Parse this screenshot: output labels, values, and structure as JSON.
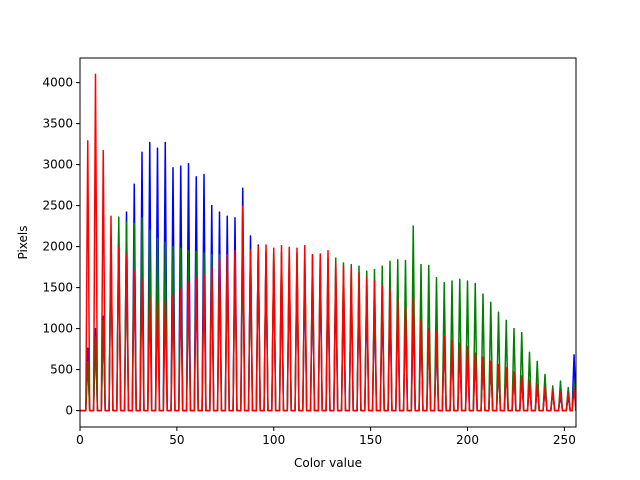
{
  "chart_data": {
    "type": "line",
    "title": "",
    "xlabel": "Color value",
    "ylabel": "Pixels",
    "xlim": [
      0,
      256
    ],
    "ylim": [
      -200,
      4300
    ],
    "xticks": [
      0,
      50,
      100,
      150,
      200,
      250
    ],
    "yticks": [
      0,
      500,
      1000,
      1500,
      2000,
      2500,
      3000,
      3500,
      4000
    ],
    "grid": false,
    "legend": "none",
    "period": 4,
    "series": [
      {
        "color": "#0000ff",
        "peaks": [
          {
            "x": 4,
            "y": 760
          },
          {
            "x": 8,
            "y": 1000
          },
          {
            "x": 12,
            "y": 1150
          },
          {
            "x": 16,
            "y": 2100
          },
          {
            "x": 20,
            "y": 2200
          },
          {
            "x": 24,
            "y": 2420
          },
          {
            "x": 28,
            "y": 2760
          },
          {
            "x": 32,
            "y": 3150
          },
          {
            "x": 36,
            "y": 3270
          },
          {
            "x": 40,
            "y": 3200
          },
          {
            "x": 44,
            "y": 3270
          },
          {
            "x": 48,
            "y": 2960
          },
          {
            "x": 52,
            "y": 2980
          },
          {
            "x": 56,
            "y": 3010
          },
          {
            "x": 60,
            "y": 2850
          },
          {
            "x": 64,
            "y": 2880
          },
          {
            "x": 68,
            "y": 2500
          },
          {
            "x": 72,
            "y": 2420
          },
          {
            "x": 76,
            "y": 2370
          },
          {
            "x": 80,
            "y": 2350
          },
          {
            "x": 84,
            "y": 2710
          },
          {
            "x": 88,
            "y": 2130
          },
          {
            "x": 92,
            "y": 2020
          },
          {
            "x": 96,
            "y": 1900
          },
          {
            "x": 100,
            "y": 1850
          },
          {
            "x": 104,
            "y": 1850
          },
          {
            "x": 108,
            "y": 1800
          },
          {
            "x": 112,
            "y": 1760
          },
          {
            "x": 116,
            "y": 1700
          },
          {
            "x": 120,
            "y": 1700
          },
          {
            "x": 124,
            "y": 1680
          },
          {
            "x": 128,
            "y": 1650
          },
          {
            "x": 132,
            "y": 1600
          },
          {
            "x": 136,
            "y": 1560
          },
          {
            "x": 140,
            "y": 1540
          },
          {
            "x": 144,
            "y": 1500
          },
          {
            "x": 148,
            "y": 1460
          },
          {
            "x": 152,
            "y": 1400
          },
          {
            "x": 156,
            "y": 1350
          },
          {
            "x": 160,
            "y": 1320
          },
          {
            "x": 164,
            "y": 1300
          },
          {
            "x": 168,
            "y": 1270
          },
          {
            "x": 172,
            "y": 1200
          },
          {
            "x": 176,
            "y": 1120
          },
          {
            "x": 180,
            "y": 1000
          },
          {
            "x": 184,
            "y": 960
          },
          {
            "x": 188,
            "y": 900
          },
          {
            "x": 192,
            "y": 860
          },
          {
            "x": 196,
            "y": 820
          },
          {
            "x": 200,
            "y": 780
          },
          {
            "x": 204,
            "y": 700
          },
          {
            "x": 208,
            "y": 650
          },
          {
            "x": 212,
            "y": 600
          },
          {
            "x": 216,
            "y": 560
          },
          {
            "x": 220,
            "y": 520
          },
          {
            "x": 224,
            "y": 470
          },
          {
            "x": 228,
            "y": 420
          },
          {
            "x": 232,
            "y": 370
          },
          {
            "x": 236,
            "y": 320
          },
          {
            "x": 240,
            "y": 270
          },
          {
            "x": 244,
            "y": 230
          },
          {
            "x": 248,
            "y": 200
          },
          {
            "x": 252,
            "y": 180
          },
          {
            "x": 255,
            "y": 680
          }
        ]
      },
      {
        "color": "#008000",
        "peaks": [
          {
            "x": 4,
            "y": 600
          },
          {
            "x": 8,
            "y": 900
          },
          {
            "x": 12,
            "y": 1100
          },
          {
            "x": 16,
            "y": 2000
          },
          {
            "x": 20,
            "y": 2360
          },
          {
            "x": 24,
            "y": 2300
          },
          {
            "x": 28,
            "y": 2280
          },
          {
            "x": 32,
            "y": 2350
          },
          {
            "x": 36,
            "y": 2200
          },
          {
            "x": 40,
            "y": 2100
          },
          {
            "x": 44,
            "y": 2050
          },
          {
            "x": 48,
            "y": 2000
          },
          {
            "x": 52,
            "y": 1980
          },
          {
            "x": 56,
            "y": 1950
          },
          {
            "x": 60,
            "y": 1940
          },
          {
            "x": 64,
            "y": 1920
          },
          {
            "x": 68,
            "y": 1900
          },
          {
            "x": 72,
            "y": 1900
          },
          {
            "x": 76,
            "y": 1880
          },
          {
            "x": 80,
            "y": 1880
          },
          {
            "x": 84,
            "y": 2000
          },
          {
            "x": 88,
            "y": 1950
          },
          {
            "x": 92,
            "y": 1950
          },
          {
            "x": 96,
            "y": 1940
          },
          {
            "x": 100,
            "y": 1940
          },
          {
            "x": 104,
            "y": 1930
          },
          {
            "x": 108,
            "y": 1920
          },
          {
            "x": 112,
            "y": 1920
          },
          {
            "x": 116,
            "y": 1900
          },
          {
            "x": 120,
            "y": 1900
          },
          {
            "x": 124,
            "y": 1880
          },
          {
            "x": 128,
            "y": 1860
          },
          {
            "x": 132,
            "y": 1860
          },
          {
            "x": 136,
            "y": 1800
          },
          {
            "x": 140,
            "y": 1780
          },
          {
            "x": 144,
            "y": 1760
          },
          {
            "x": 148,
            "y": 1700
          },
          {
            "x": 152,
            "y": 1720
          },
          {
            "x": 156,
            "y": 1760
          },
          {
            "x": 160,
            "y": 1820
          },
          {
            "x": 164,
            "y": 1840
          },
          {
            "x": 168,
            "y": 1830
          },
          {
            "x": 172,
            "y": 2250
          },
          {
            "x": 176,
            "y": 1780
          },
          {
            "x": 180,
            "y": 1770
          },
          {
            "x": 184,
            "y": 1620
          },
          {
            "x": 188,
            "y": 1560
          },
          {
            "x": 192,
            "y": 1580
          },
          {
            "x": 196,
            "y": 1600
          },
          {
            "x": 200,
            "y": 1580
          },
          {
            "x": 204,
            "y": 1550
          },
          {
            "x": 208,
            "y": 1420
          },
          {
            "x": 212,
            "y": 1320
          },
          {
            "x": 216,
            "y": 1200
          },
          {
            "x": 220,
            "y": 1100
          },
          {
            "x": 224,
            "y": 1000
          },
          {
            "x": 228,
            "y": 950
          },
          {
            "x": 232,
            "y": 710
          },
          {
            "x": 236,
            "y": 600
          },
          {
            "x": 240,
            "y": 440
          },
          {
            "x": 244,
            "y": 300
          },
          {
            "x": 248,
            "y": 360
          },
          {
            "x": 252,
            "y": 280
          },
          {
            "x": 255,
            "y": 350
          }
        ]
      },
      {
        "color": "#ff0000",
        "peaks": [
          {
            "x": 4,
            "y": 3290
          },
          {
            "x": 8,
            "y": 4100
          },
          {
            "x": 12,
            "y": 3170
          },
          {
            "x": 16,
            "y": 2370
          },
          {
            "x": 20,
            "y": 2000
          },
          {
            "x": 24,
            "y": 1900
          },
          {
            "x": 28,
            "y": 1700
          },
          {
            "x": 32,
            "y": 1600
          },
          {
            "x": 36,
            "y": 1400
          },
          {
            "x": 40,
            "y": 1320
          },
          {
            "x": 44,
            "y": 1330
          },
          {
            "x": 48,
            "y": 1400
          },
          {
            "x": 52,
            "y": 1480
          },
          {
            "x": 56,
            "y": 1560
          },
          {
            "x": 60,
            "y": 1620
          },
          {
            "x": 64,
            "y": 1660
          },
          {
            "x": 68,
            "y": 1750
          },
          {
            "x": 72,
            "y": 1850
          },
          {
            "x": 76,
            "y": 1900
          },
          {
            "x": 80,
            "y": 1950
          },
          {
            "x": 84,
            "y": 2490
          },
          {
            "x": 88,
            "y": 1960
          },
          {
            "x": 92,
            "y": 2000
          },
          {
            "x": 96,
            "y": 2020
          },
          {
            "x": 100,
            "y": 1980
          },
          {
            "x": 104,
            "y": 2010
          },
          {
            "x": 108,
            "y": 1990
          },
          {
            "x": 112,
            "y": 1980
          },
          {
            "x": 116,
            "y": 2010
          },
          {
            "x": 120,
            "y": 1900
          },
          {
            "x": 124,
            "y": 1910
          },
          {
            "x": 128,
            "y": 1950
          },
          {
            "x": 132,
            "y": 1800
          },
          {
            "x": 136,
            "y": 1760
          },
          {
            "x": 140,
            "y": 1740
          },
          {
            "x": 144,
            "y": 1680
          },
          {
            "x": 148,
            "y": 1620
          },
          {
            "x": 152,
            "y": 1580
          },
          {
            "x": 156,
            "y": 1520
          },
          {
            "x": 160,
            "y": 1480
          },
          {
            "x": 164,
            "y": 1360
          },
          {
            "x": 168,
            "y": 1260
          },
          {
            "x": 172,
            "y": 1380
          },
          {
            "x": 176,
            "y": 1100
          },
          {
            "x": 180,
            "y": 980
          },
          {
            "x": 184,
            "y": 960
          },
          {
            "x": 188,
            "y": 900
          },
          {
            "x": 192,
            "y": 860
          },
          {
            "x": 196,
            "y": 820
          },
          {
            "x": 200,
            "y": 780
          },
          {
            "x": 204,
            "y": 700
          },
          {
            "x": 208,
            "y": 650
          },
          {
            "x": 212,
            "y": 600
          },
          {
            "x": 216,
            "y": 560
          },
          {
            "x": 220,
            "y": 520
          },
          {
            "x": 224,
            "y": 470
          },
          {
            "x": 228,
            "y": 420
          },
          {
            "x": 232,
            "y": 370
          },
          {
            "x": 236,
            "y": 320
          },
          {
            "x": 240,
            "y": 280
          },
          {
            "x": 244,
            "y": 250
          },
          {
            "x": 248,
            "y": 230
          },
          {
            "x": 252,
            "y": 220
          },
          {
            "x": 255,
            "y": 260
          }
        ]
      }
    ]
  }
}
